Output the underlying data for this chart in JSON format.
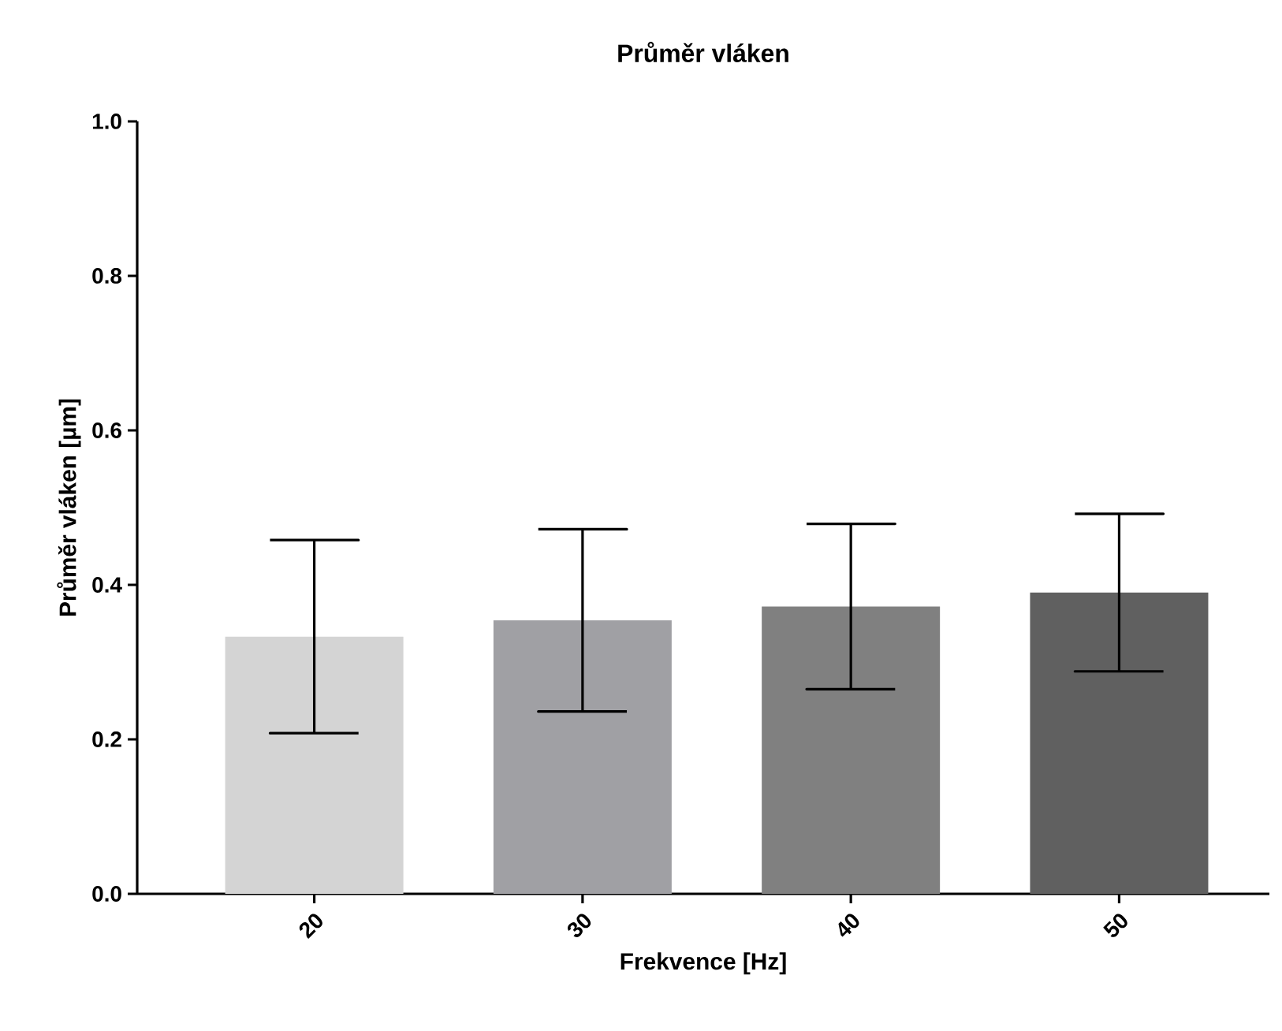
{
  "chart_data": {
    "type": "bar",
    "title": "Průměr vláken",
    "xlabel": "Frekvence [Hz]",
    "ylabel": "Průměr vláken [µm]",
    "categories": [
      "20",
      "30",
      "40",
      "50"
    ],
    "values": [
      0.333,
      0.354,
      0.372,
      0.39
    ],
    "errors": [
      0.125,
      0.118,
      0.107,
      0.102
    ],
    "colors": [
      "#d4d4d4",
      "#a0a0a4",
      "#808080",
      "#606060"
    ],
    "ylim": [
      0,
      1
    ],
    "yticks": [
      {
        "value": 0,
        "label": "0.0"
      },
      {
        "value": 0.2,
        "label": "0.2"
      },
      {
        "value": 0.4,
        "label": "0.4"
      },
      {
        "value": 0.6,
        "label": "0.6"
      },
      {
        "value": 0.8,
        "label": "0.8"
      },
      {
        "value": 1,
        "label": "1.0"
      }
    ]
  }
}
